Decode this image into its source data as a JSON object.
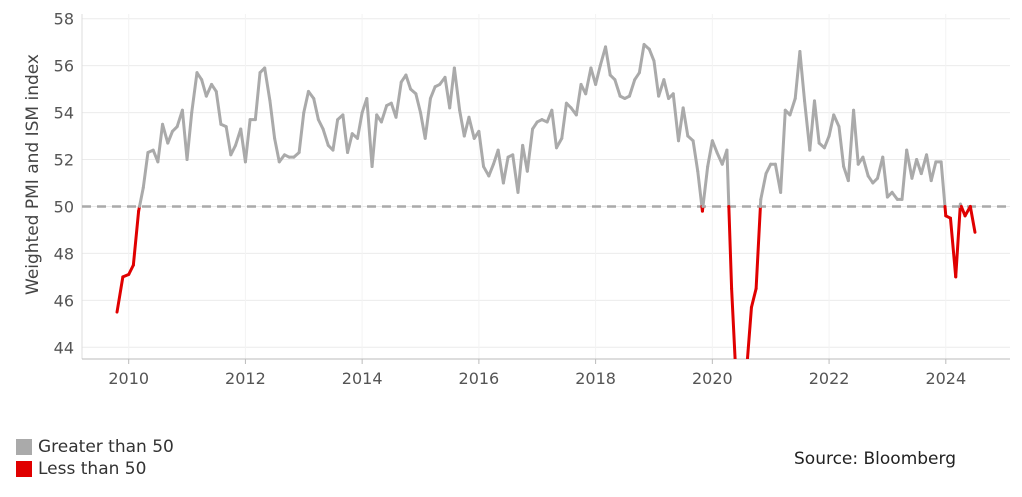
{
  "chart_data": {
    "type": "line",
    "ylabel": "Weighted PMI and ISM index",
    "ylim": [
      43.5,
      58.2
    ],
    "xlim": [
      2009.2,
      2025.1
    ],
    "yticks": [
      44,
      46,
      48,
      50,
      52,
      54,
      56,
      58
    ],
    "xticks": [
      2010,
      2012,
      2014,
      2016,
      2018,
      2020,
      2022,
      2024
    ],
    "threshold": 50,
    "grid": true,
    "legend_position": "bottom-left",
    "colors": {
      "above": "#aaaaaa",
      "below": "#e00000",
      "threshold": "#aaaaaa"
    },
    "series": [
      {
        "values": [
          [
            2009.8,
            45.5
          ],
          [
            2009.9,
            47.0
          ],
          [
            2010.0,
            47.1
          ],
          [
            2010.08,
            47.5
          ],
          [
            2010.17,
            49.8
          ],
          [
            2010.25,
            50.8
          ],
          [
            2010.33,
            52.3
          ],
          [
            2010.42,
            52.4
          ],
          [
            2010.5,
            51.9
          ],
          [
            2010.58,
            53.5
          ],
          [
            2010.67,
            52.7
          ],
          [
            2010.75,
            53.2
          ],
          [
            2010.83,
            53.4
          ],
          [
            2010.92,
            54.1
          ],
          [
            2011.0,
            52.0
          ],
          [
            2011.08,
            54.0
          ],
          [
            2011.17,
            55.7
          ],
          [
            2011.25,
            55.4
          ],
          [
            2011.33,
            54.7
          ],
          [
            2011.42,
            55.2
          ],
          [
            2011.5,
            54.9
          ],
          [
            2011.58,
            53.5
          ],
          [
            2011.67,
            53.4
          ],
          [
            2011.75,
            52.2
          ],
          [
            2011.83,
            52.6
          ],
          [
            2011.92,
            53.3
          ],
          [
            2012.0,
            51.9
          ],
          [
            2012.08,
            53.7
          ],
          [
            2012.17,
            53.7
          ],
          [
            2012.25,
            55.7
          ],
          [
            2012.33,
            55.9
          ],
          [
            2012.42,
            54.5
          ],
          [
            2012.5,
            52.9
          ],
          [
            2012.58,
            51.9
          ],
          [
            2012.67,
            52.2
          ],
          [
            2012.75,
            52.1
          ],
          [
            2012.83,
            52.1
          ],
          [
            2012.92,
            52.3
          ],
          [
            2013.0,
            54.0
          ],
          [
            2013.08,
            54.9
          ],
          [
            2013.17,
            54.6
          ],
          [
            2013.25,
            53.7
          ],
          [
            2013.33,
            53.3
          ],
          [
            2013.42,
            52.6
          ],
          [
            2013.5,
            52.4
          ],
          [
            2013.58,
            53.7
          ],
          [
            2013.67,
            53.9
          ],
          [
            2013.75,
            52.3
          ],
          [
            2013.83,
            53.1
          ],
          [
            2013.92,
            52.9
          ],
          [
            2014.0,
            54.0
          ],
          [
            2014.08,
            54.6
          ],
          [
            2014.17,
            51.7
          ],
          [
            2014.25,
            53.9
          ],
          [
            2014.33,
            53.6
          ],
          [
            2014.42,
            54.3
          ],
          [
            2014.5,
            54.4
          ],
          [
            2014.58,
            53.8
          ],
          [
            2014.67,
            55.3
          ],
          [
            2014.75,
            55.6
          ],
          [
            2014.83,
            55.0
          ],
          [
            2014.92,
            54.8
          ],
          [
            2015.0,
            54.0
          ],
          [
            2015.08,
            52.9
          ],
          [
            2015.17,
            54.6
          ],
          [
            2015.25,
            55.1
          ],
          [
            2015.33,
            55.2
          ],
          [
            2015.42,
            55.5
          ],
          [
            2015.5,
            54.2
          ],
          [
            2015.58,
            55.9
          ],
          [
            2015.67,
            54.1
          ],
          [
            2015.75,
            53.0
          ],
          [
            2015.83,
            53.8
          ],
          [
            2015.92,
            52.9
          ],
          [
            2016.0,
            53.2
          ],
          [
            2016.08,
            51.7
          ],
          [
            2016.17,
            51.3
          ],
          [
            2016.25,
            51.8
          ],
          [
            2016.33,
            52.4
          ],
          [
            2016.42,
            51.0
          ],
          [
            2016.5,
            52.1
          ],
          [
            2016.58,
            52.2
          ],
          [
            2016.67,
            50.6
          ],
          [
            2016.75,
            52.6
          ],
          [
            2016.83,
            51.5
          ],
          [
            2016.92,
            53.3
          ],
          [
            2017.0,
            53.6
          ],
          [
            2017.08,
            53.7
          ],
          [
            2017.17,
            53.6
          ],
          [
            2017.25,
            54.1
          ],
          [
            2017.33,
            52.5
          ],
          [
            2017.42,
            52.9
          ],
          [
            2017.5,
            54.4
          ],
          [
            2017.58,
            54.2
          ],
          [
            2017.67,
            53.9
          ],
          [
            2017.75,
            55.2
          ],
          [
            2017.83,
            54.8
          ],
          [
            2017.92,
            55.9
          ],
          [
            2018.0,
            55.2
          ],
          [
            2018.08,
            56.0
          ],
          [
            2018.17,
            56.8
          ],
          [
            2018.25,
            55.6
          ],
          [
            2018.33,
            55.4
          ],
          [
            2018.42,
            54.7
          ],
          [
            2018.5,
            54.6
          ],
          [
            2018.58,
            54.7
          ],
          [
            2018.67,
            55.4
          ],
          [
            2018.75,
            55.7
          ],
          [
            2018.83,
            56.9
          ],
          [
            2018.92,
            56.7
          ],
          [
            2019.0,
            56.2
          ],
          [
            2019.08,
            54.7
          ],
          [
            2019.17,
            55.4
          ],
          [
            2019.25,
            54.6
          ],
          [
            2019.33,
            54.8
          ],
          [
            2019.42,
            52.8
          ],
          [
            2019.5,
            54.2
          ],
          [
            2019.58,
            53.0
          ],
          [
            2019.67,
            52.8
          ],
          [
            2019.75,
            51.5
          ],
          [
            2019.83,
            49.8
          ],
          [
            2019.92,
            51.7
          ],
          [
            2020.0,
            52.8
          ],
          [
            2020.08,
            52.3
          ],
          [
            2020.17,
            51.8
          ],
          [
            2020.25,
            52.4
          ],
          [
            2020.33,
            46.5
          ],
          [
            2020.42,
            42.0
          ],
          [
            2020.5,
            43.0
          ],
          [
            2020.58,
            42.8
          ],
          [
            2020.67,
            45.7
          ],
          [
            2020.75,
            46.5
          ],
          [
            2020.83,
            50.3
          ],
          [
            2020.92,
            51.4
          ],
          [
            2021.0,
            51.8
          ],
          [
            2021.08,
            51.8
          ],
          [
            2021.17,
            50.6
          ],
          [
            2021.25,
            54.1
          ],
          [
            2021.33,
            53.9
          ],
          [
            2021.42,
            54.6
          ],
          [
            2021.5,
            56.6
          ],
          [
            2021.58,
            54.5
          ],
          [
            2021.67,
            52.4
          ],
          [
            2021.75,
            54.5
          ],
          [
            2021.83,
            52.7
          ],
          [
            2021.92,
            52.5
          ],
          [
            2022.0,
            53.0
          ],
          [
            2022.08,
            53.9
          ],
          [
            2022.17,
            53.4
          ],
          [
            2022.25,
            51.7
          ],
          [
            2022.33,
            51.1
          ],
          [
            2022.42,
            54.1
          ],
          [
            2022.5,
            51.8
          ],
          [
            2022.58,
            52.1
          ],
          [
            2022.67,
            51.3
          ],
          [
            2022.75,
            51.0
          ],
          [
            2022.83,
            51.2
          ],
          [
            2022.92,
            52.1
          ],
          [
            2023.0,
            50.4
          ],
          [
            2023.08,
            50.6
          ],
          [
            2023.17,
            50.3
          ],
          [
            2023.25,
            50.3
          ],
          [
            2023.33,
            52.4
          ],
          [
            2023.42,
            51.2
          ],
          [
            2023.5,
            52.0
          ],
          [
            2023.58,
            51.4
          ],
          [
            2023.67,
            52.2
          ],
          [
            2023.75,
            51.1
          ],
          [
            2023.83,
            51.9
          ],
          [
            2023.92,
            51.9
          ],
          [
            2024.0,
            49.6
          ],
          [
            2024.08,
            49.5
          ],
          [
            2024.17,
            47.0
          ],
          [
            2024.25,
            50.1
          ],
          [
            2024.33,
            49.6
          ],
          [
            2024.42,
            50.0
          ],
          [
            2024.5,
            48.9
          ]
        ]
      }
    ]
  },
  "legend": {
    "items": [
      {
        "label": "Greater than 50",
        "color": "#aaaaaa"
      },
      {
        "label": "Less than 50",
        "color": "#e00000"
      }
    ]
  },
  "source": "Source: Bloomberg"
}
